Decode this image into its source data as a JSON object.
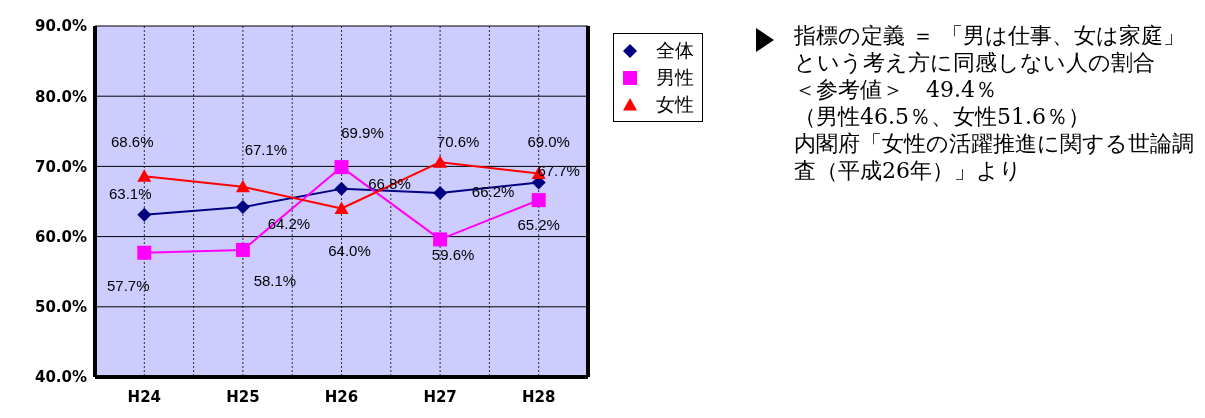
{
  "chart_data": {
    "type": "line",
    "categories": [
      "H24",
      "H25",
      "H26",
      "H27",
      "H28"
    ],
    "series": [
      {
        "name": "全体",
        "color": "#000080",
        "marker": "diamond",
        "values": [
          63.1,
          64.2,
          66.8,
          66.2,
          67.7
        ],
        "value_labels": [
          "63.1%",
          "64.2%",
          "66.8%",
          "66.2%",
          "67.7%"
        ]
      },
      {
        "name": "男性",
        "color": "#ff00ff",
        "marker": "square",
        "values": [
          57.7,
          58.1,
          69.9,
          59.6,
          65.2
        ],
        "value_labels": [
          "57.7%",
          "58.1%",
          "69.9%",
          "59.6%",
          "65.2%"
        ]
      },
      {
        "name": "女性",
        "color": "#ff0000",
        "marker": "triangle",
        "values": [
          68.6,
          67.1,
          64.0,
          70.6,
          69.0
        ],
        "value_labels": [
          "68.6%",
          "67.1%",
          "64.0%",
          "70.6%",
          "69.0%"
        ]
      }
    ],
    "ylim": [
      40,
      90
    ],
    "yticks": [
      {
        "value": 40,
        "label": "40.0%"
      },
      {
        "value": 50,
        "label": "50.0%"
      },
      {
        "value": 60,
        "label": "60.0%"
      },
      {
        "value": 70,
        "label": "70.0%"
      },
      {
        "value": 80,
        "label": "80.0%"
      },
      {
        "value": 90,
        "label": "90.0%"
      }
    ],
    "grid": true,
    "legend": "top right",
    "data_labels": true,
    "annotations": [
      "指標の定義 ＝ 「男は仕事、女は家庭」という考え方に同感しない人の割合",
      "＜参考値＞　49.4％",
      "（男性46.5％、女性51.6％）",
      "内閣府「女性の活躍推進に関する世論調査（平成26年）」より"
    ]
  }
}
